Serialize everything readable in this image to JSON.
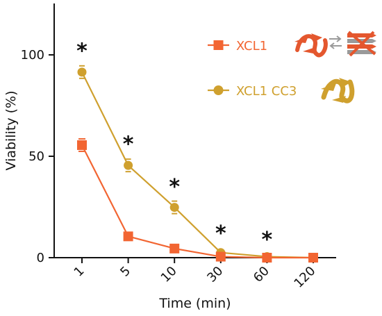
{
  "colors": {
    "xcl1": "#F26532",
    "xcl1_cc3": "#CFA02E",
    "axis": "#111111",
    "xcl1_protein_dark": "#E4572E",
    "xcl1_protein_light": "#9A9A9A"
  },
  "chart_data": {
    "type": "line",
    "xlabel": "Time  (min)",
    "ylabel": "Viability (%)",
    "categories": [
      "1",
      "5",
      "10",
      "30",
      "60",
      "120"
    ],
    "ylim": [
      0,
      125
    ],
    "yticks": [
      0,
      50,
      100
    ],
    "grid": false,
    "legend_position": "top-right",
    "series": [
      {
        "name": "XCL1",
        "marker": "square",
        "color": "#F26532",
        "values": [
          55.5,
          10.5,
          4.5,
          0.5,
          0,
          0
        ]
      },
      {
        "name": "XCL1 CC3",
        "marker": "circle",
        "color": "#CFA02E",
        "values": [
          91.5,
          45.5,
          24.8,
          2.5,
          0.5,
          0
        ]
      }
    ],
    "annotations": [
      {
        "text": "*",
        "category": "1",
        "y": 104
      },
      {
        "text": "*",
        "category": "5",
        "y": 58
      },
      {
        "text": "*",
        "category": "10",
        "y": 37
      },
      {
        "text": "*",
        "category": "30",
        "y": 14
      },
      {
        "text": "*",
        "category": "60",
        "y": 11
      }
    ],
    "legend_icons": [
      {
        "series": "XCL1",
        "icon": "protein-fold-switch-icon"
      },
      {
        "series": "XCL1 CC3",
        "icon": "protein-structure-icon"
      }
    ]
  }
}
